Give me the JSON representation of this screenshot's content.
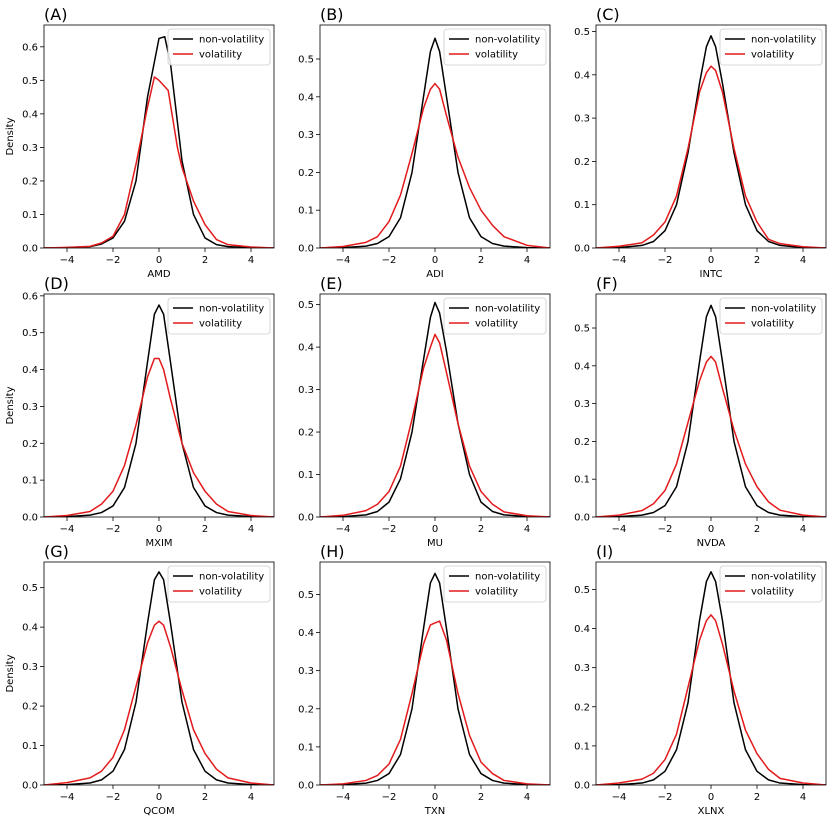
{
  "figure": {
    "legend_labels": [
      "non-volatility",
      "volatility"
    ],
    "colors": {
      "non_volatility": "#000000",
      "volatility": "#e31a1c"
    }
  },
  "chart_data": [
    {
      "type": "line",
      "panel_label": "(A)",
      "xlabel": "AMD",
      "ylabel": "Density",
      "xlim": [
        -5,
        5
      ],
      "ylim": [
        0,
        0.665
      ],
      "xticks": [
        -4,
        -2,
        0,
        2,
        4
      ],
      "yticks": [
        0.0,
        0.1,
        0.2,
        0.3,
        0.4,
        0.5,
        0.6
      ],
      "grid": false,
      "legend": "upper-right",
      "series": [
        {
          "name": "non-volatility",
          "color": "#000000",
          "x": [
            -5,
            -4,
            -3,
            -2.5,
            -2,
            -1.5,
            -1,
            -0.5,
            0,
            0.25,
            0.5,
            1,
            1.5,
            2,
            2.5,
            3,
            4,
            5
          ],
          "y": [
            0,
            0.001,
            0.004,
            0.012,
            0.03,
            0.08,
            0.2,
            0.45,
            0.625,
            0.63,
            0.55,
            0.26,
            0.1,
            0.03,
            0.01,
            0.004,
            0.001,
            0
          ]
        },
        {
          "name": "volatility",
          "color": "#e31a1c",
          "x": [
            -5,
            -4,
            -3,
            -2.5,
            -2,
            -1.5,
            -1,
            -0.5,
            -0.2,
            0,
            0.4,
            0.8,
            1,
            1.5,
            2,
            2.5,
            3,
            4,
            5
          ],
          "y": [
            0,
            0.002,
            0.005,
            0.015,
            0.035,
            0.1,
            0.25,
            0.42,
            0.51,
            0.5,
            0.47,
            0.3,
            0.24,
            0.14,
            0.07,
            0.025,
            0.01,
            0.003,
            0
          ]
        }
      ]
    },
    {
      "type": "line",
      "panel_label": "(B)",
      "xlabel": "ADI",
      "ylabel": "",
      "xlim": [
        -5,
        5
      ],
      "ylim": [
        0,
        0.59
      ],
      "xticks": [
        -4,
        -2,
        0,
        2,
        4
      ],
      "yticks": [
        0.0,
        0.1,
        0.2,
        0.3,
        0.4,
        0.5
      ],
      "grid": false,
      "legend": "upper-right",
      "series": [
        {
          "name": "non-volatility",
          "color": "#000000",
          "x": [
            -5,
            -4,
            -3,
            -2.5,
            -2,
            -1.5,
            -1,
            -0.5,
            -0.2,
            0,
            0.2,
            0.5,
            1,
            1.5,
            2,
            2.5,
            3,
            4,
            5
          ],
          "y": [
            0,
            0.001,
            0.005,
            0.012,
            0.03,
            0.08,
            0.2,
            0.4,
            0.52,
            0.555,
            0.52,
            0.4,
            0.2,
            0.08,
            0.03,
            0.012,
            0.005,
            0.001,
            0
          ]
        },
        {
          "name": "volatility",
          "color": "#e31a1c",
          "x": [
            -5,
            -4,
            -3,
            -2.5,
            -2,
            -1.5,
            -1,
            -0.5,
            -0.2,
            0,
            0.2,
            0.5,
            1,
            1.5,
            2,
            2.5,
            3,
            4,
            5
          ],
          "y": [
            0,
            0.004,
            0.015,
            0.03,
            0.07,
            0.14,
            0.25,
            0.37,
            0.42,
            0.435,
            0.42,
            0.35,
            0.24,
            0.16,
            0.1,
            0.06,
            0.03,
            0.007,
            0
          ]
        }
      ]
    },
    {
      "type": "line",
      "panel_label": "(C)",
      "xlabel": "INTC",
      "ylabel": "",
      "xlim": [
        -5,
        5
      ],
      "ylim": [
        0,
        0.515
      ],
      "xticks": [
        -4,
        -2,
        0,
        2,
        4
      ],
      "yticks": [
        0.0,
        0.1,
        0.2,
        0.3,
        0.4,
        0.5
      ],
      "grid": false,
      "legend": "upper-right",
      "series": [
        {
          "name": "non-volatility",
          "color": "#000000",
          "x": [
            -5,
            -4,
            -3,
            -2.5,
            -2,
            -1.5,
            -1,
            -0.5,
            -0.2,
            0,
            0.2,
            0.5,
            1,
            1.5,
            2,
            2.5,
            3,
            4,
            5
          ],
          "y": [
            0,
            0.001,
            0.006,
            0.015,
            0.04,
            0.1,
            0.22,
            0.38,
            0.465,
            0.49,
            0.465,
            0.38,
            0.22,
            0.1,
            0.04,
            0.015,
            0.006,
            0.001,
            0
          ]
        },
        {
          "name": "volatility",
          "color": "#e31a1c",
          "x": [
            -5,
            -4,
            -3,
            -2.5,
            -2,
            -1.5,
            -1,
            -0.5,
            -0.2,
            0,
            0.2,
            0.5,
            1,
            1.5,
            2,
            2.5,
            3,
            4,
            5
          ],
          "y": [
            0,
            0.004,
            0.012,
            0.03,
            0.06,
            0.12,
            0.23,
            0.36,
            0.405,
            0.42,
            0.41,
            0.36,
            0.23,
            0.12,
            0.06,
            0.02,
            0.01,
            0.003,
            0
          ]
        }
      ]
    },
    {
      "type": "line",
      "panel_label": "(D)",
      "xlabel": "MXIM",
      "ylabel": "Density",
      "xlim": [
        -5,
        5
      ],
      "ylim": [
        0,
        0.605
      ],
      "xticks": [
        -4,
        -2,
        0,
        2,
        4
      ],
      "yticks": [
        0.0,
        0.1,
        0.2,
        0.3,
        0.4,
        0.5,
        0.6
      ],
      "grid": false,
      "legend": "upper-right",
      "series": [
        {
          "name": "non-volatility",
          "color": "#000000",
          "x": [
            -5,
            -4,
            -3,
            -2.5,
            -2,
            -1.5,
            -1,
            -0.5,
            -0.2,
            0,
            0.2,
            0.5,
            1,
            1.5,
            2,
            2.5,
            3,
            4,
            5
          ],
          "y": [
            0,
            0.001,
            0.005,
            0.012,
            0.03,
            0.08,
            0.2,
            0.42,
            0.55,
            0.575,
            0.55,
            0.42,
            0.2,
            0.08,
            0.03,
            0.012,
            0.005,
            0.001,
            0
          ]
        },
        {
          "name": "volatility",
          "color": "#e31a1c",
          "x": [
            -5,
            -4,
            -3,
            -2.5,
            -2,
            -1.5,
            -1,
            -0.5,
            -0.2,
            0,
            0.2,
            0.5,
            1,
            1.5,
            2,
            2.5,
            3,
            4,
            5
          ],
          "y": [
            0,
            0.004,
            0.015,
            0.035,
            0.07,
            0.14,
            0.25,
            0.38,
            0.43,
            0.43,
            0.4,
            0.32,
            0.2,
            0.12,
            0.07,
            0.035,
            0.015,
            0.004,
            0
          ]
        }
      ]
    },
    {
      "type": "line",
      "panel_label": "(E)",
      "xlabel": "MU",
      "ylabel": "",
      "xlim": [
        -5,
        5
      ],
      "ylim": [
        0,
        0.525
      ],
      "xticks": [
        -4,
        -2,
        0,
        2,
        4
      ],
      "yticks": [
        0.0,
        0.1,
        0.2,
        0.3,
        0.4,
        0.5
      ],
      "grid": false,
      "legend": "upper-right",
      "series": [
        {
          "name": "non-volatility",
          "color": "#000000",
          "x": [
            -5,
            -4,
            -3,
            -2.5,
            -2,
            -1.5,
            -1,
            -0.5,
            -0.2,
            0,
            0.2,
            0.5,
            1,
            1.5,
            2,
            2.5,
            3,
            4,
            5
          ],
          "y": [
            0,
            0.001,
            0.005,
            0.013,
            0.035,
            0.09,
            0.2,
            0.37,
            0.47,
            0.505,
            0.48,
            0.39,
            0.22,
            0.1,
            0.035,
            0.013,
            0.005,
            0.001,
            0
          ]
        },
        {
          "name": "volatility",
          "color": "#e31a1c",
          "x": [
            -5,
            -4,
            -3,
            -2.5,
            -2,
            -1.5,
            -1,
            -0.5,
            -0.2,
            0,
            0.2,
            0.5,
            1,
            1.5,
            2,
            2.5,
            3,
            4,
            5
          ],
          "y": [
            0,
            0.004,
            0.015,
            0.03,
            0.06,
            0.12,
            0.23,
            0.35,
            0.4,
            0.43,
            0.41,
            0.34,
            0.22,
            0.12,
            0.06,
            0.03,
            0.012,
            0.003,
            0
          ]
        }
      ]
    },
    {
      "type": "line",
      "panel_label": "(F)",
      "xlabel": "NVDA",
      "ylabel": "",
      "xlim": [
        -5,
        5
      ],
      "ylim": [
        0,
        0.59
      ],
      "xticks": [
        -4,
        -2,
        0,
        2,
        4
      ],
      "yticks": [
        0.0,
        0.1,
        0.2,
        0.3,
        0.4,
        0.5
      ],
      "grid": false,
      "legend": "upper-right",
      "series": [
        {
          "name": "non-volatility",
          "color": "#000000",
          "x": [
            -5,
            -4,
            -3,
            -2.5,
            -2,
            -1.5,
            -1,
            -0.5,
            -0.2,
            0,
            0.2,
            0.5,
            1,
            1.5,
            2,
            2.5,
            3,
            4,
            5
          ],
          "y": [
            0,
            0.001,
            0.005,
            0.012,
            0.03,
            0.08,
            0.2,
            0.41,
            0.53,
            0.56,
            0.53,
            0.41,
            0.2,
            0.08,
            0.03,
            0.012,
            0.005,
            0.001,
            0
          ]
        },
        {
          "name": "volatility",
          "color": "#e31a1c",
          "x": [
            -5,
            -4,
            -3,
            -2.5,
            -2,
            -1.5,
            -1,
            -0.5,
            -0.2,
            0,
            0.2,
            0.5,
            1,
            1.5,
            2,
            2.5,
            3,
            4,
            5
          ],
          "y": [
            0,
            0.005,
            0.017,
            0.035,
            0.07,
            0.14,
            0.25,
            0.36,
            0.41,
            0.425,
            0.41,
            0.34,
            0.23,
            0.14,
            0.08,
            0.04,
            0.018,
            0.005,
            0
          ]
        }
      ]
    },
    {
      "type": "line",
      "panel_label": "(G)",
      "xlabel": "QCOM",
      "ylabel": "Density",
      "xlim": [
        -5,
        5
      ],
      "ylim": [
        0,
        0.565
      ],
      "xticks": [
        -4,
        -2,
        0,
        2,
        4
      ],
      "yticks": [
        0.0,
        0.1,
        0.2,
        0.3,
        0.4,
        0.5
      ],
      "grid": false,
      "legend": "upper-right",
      "series": [
        {
          "name": "non-volatility",
          "color": "#000000",
          "x": [
            -5,
            -4,
            -3,
            -2.5,
            -2,
            -1.5,
            -1,
            -0.5,
            -0.2,
            0,
            0.2,
            0.5,
            1,
            1.5,
            2,
            2.5,
            3,
            4,
            5
          ],
          "y": [
            0,
            0.001,
            0.005,
            0.013,
            0.035,
            0.09,
            0.21,
            0.41,
            0.52,
            0.54,
            0.52,
            0.41,
            0.21,
            0.09,
            0.035,
            0.013,
            0.005,
            0.001,
            0
          ]
        },
        {
          "name": "volatility",
          "color": "#e31a1c",
          "x": [
            -5,
            -4,
            -3,
            -2.5,
            -2,
            -1.5,
            -1,
            -0.5,
            -0.2,
            0,
            0.2,
            0.5,
            1,
            1.5,
            2,
            2.5,
            3,
            4,
            5
          ],
          "y": [
            0,
            0.006,
            0.018,
            0.035,
            0.07,
            0.14,
            0.25,
            0.36,
            0.405,
            0.415,
            0.405,
            0.35,
            0.24,
            0.14,
            0.08,
            0.04,
            0.018,
            0.005,
            0
          ]
        }
      ]
    },
    {
      "type": "line",
      "panel_label": "(H)",
      "xlabel": "TXN",
      "ylabel": "",
      "xlim": [
        -5,
        5
      ],
      "ylim": [
        0,
        0.585
      ],
      "xticks": [
        -4,
        -2,
        0,
        2,
        4
      ],
      "yticks": [
        0.0,
        0.1,
        0.2,
        0.3,
        0.4,
        0.5
      ],
      "grid": false,
      "legend": "upper-right",
      "series": [
        {
          "name": "non-volatility",
          "color": "#000000",
          "x": [
            -5,
            -4,
            -3,
            -2.5,
            -2,
            -1.5,
            -1,
            -0.5,
            -0.2,
            0,
            0.2,
            0.5,
            1,
            1.5,
            2,
            2.5,
            3,
            4,
            5
          ],
          "y": [
            0,
            0.001,
            0.005,
            0.012,
            0.03,
            0.08,
            0.2,
            0.41,
            0.53,
            0.555,
            0.53,
            0.41,
            0.2,
            0.08,
            0.03,
            0.012,
            0.005,
            0.001,
            0
          ]
        },
        {
          "name": "volatility",
          "color": "#e31a1c",
          "x": [
            -5,
            -4,
            -3,
            -2.5,
            -2,
            -1.5,
            -1,
            -0.5,
            -0.2,
            0,
            0.2,
            0.5,
            1,
            1.5,
            2,
            2.5,
            3,
            4,
            5
          ],
          "y": [
            0,
            0.003,
            0.012,
            0.025,
            0.055,
            0.12,
            0.24,
            0.37,
            0.42,
            0.425,
            0.43,
            0.38,
            0.24,
            0.13,
            0.06,
            0.03,
            0.012,
            0.003,
            0
          ]
        }
      ]
    },
    {
      "type": "line",
      "panel_label": "(I)",
      "xlabel": "XLNX",
      "ylabel": "",
      "xlim": [
        -5,
        5
      ],
      "ylim": [
        0,
        0.57
      ],
      "xticks": [
        -4,
        -2,
        0,
        2,
        4
      ],
      "yticks": [
        0.0,
        0.1,
        0.2,
        0.3,
        0.4,
        0.5
      ],
      "grid": false,
      "legend": "upper-right",
      "series": [
        {
          "name": "non-volatility",
          "color": "#000000",
          "x": [
            -5,
            -4,
            -3,
            -2.5,
            -2,
            -1.5,
            -1,
            -0.5,
            -0.2,
            0,
            0.2,
            0.5,
            1,
            1.5,
            2,
            2.5,
            3,
            4,
            5
          ],
          "y": [
            0,
            0.001,
            0.005,
            0.013,
            0.035,
            0.09,
            0.21,
            0.42,
            0.52,
            0.545,
            0.52,
            0.42,
            0.21,
            0.09,
            0.035,
            0.013,
            0.005,
            0.001,
            0
          ]
        },
        {
          "name": "volatility",
          "color": "#e31a1c",
          "x": [
            -5,
            -4,
            -3,
            -2.5,
            -2,
            -1.5,
            -1,
            -0.5,
            -0.2,
            0,
            0.2,
            0.5,
            1,
            1.5,
            2,
            2.5,
            3,
            4,
            5
          ],
          "y": [
            0,
            0.005,
            0.015,
            0.03,
            0.065,
            0.13,
            0.25,
            0.37,
            0.42,
            0.435,
            0.42,
            0.36,
            0.24,
            0.14,
            0.08,
            0.04,
            0.017,
            0.005,
            0
          ]
        }
      ]
    }
  ]
}
